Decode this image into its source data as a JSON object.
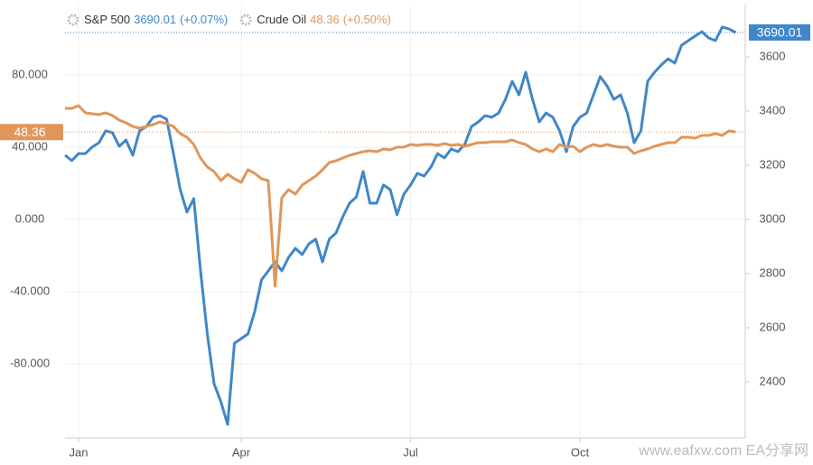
{
  "chart_data": {
    "type": "line",
    "categories": [
      null,
      null,
      "Jan",
      null,
      null,
      null,
      null,
      null,
      null,
      null,
      null,
      null,
      null,
      null,
      null,
      null,
      null,
      null,
      null,
      null,
      null,
      null,
      null,
      null,
      null,
      null,
      "Apr",
      null,
      null,
      null,
      null,
      null,
      null,
      null,
      null,
      null,
      null,
      null,
      null,
      null,
      null,
      null,
      null,
      null,
      null,
      null,
      null,
      null,
      null,
      null,
      null,
      "Jul",
      null,
      null,
      null,
      null,
      null,
      null,
      null,
      null,
      null,
      null,
      null,
      null,
      null,
      null,
      null,
      null,
      null,
      null,
      null,
      null,
      null,
      null,
      null,
      null,
      "Oct",
      null,
      null,
      null,
      null,
      null,
      null,
      null,
      null,
      null,
      null,
      null,
      null,
      null,
      null,
      null,
      null,
      null,
      null,
      null,
      null,
      null,
      null,
      null
    ],
    "series": [
      {
        "name": "S&P 500",
        "color": "#3f87c9",
        "axis": "y2",
        "change": "(+0.07%)",
        "values": [
          3237,
          3217,
          3243,
          3243,
          3267,
          3283,
          3327,
          3320,
          3270,
          3293,
          3237,
          3327,
          3343,
          3377,
          3383,
          3370,
          3243,
          3110,
          3027,
          3077,
          2810,
          2577,
          2393,
          2327,
          2243,
          2543,
          2560,
          2577,
          2660,
          2777,
          2810,
          2843,
          2810,
          2860,
          2893,
          2870,
          2910,
          2927,
          2843,
          2927,
          2950,
          3010,
          3060,
          3083,
          3177,
          3060,
          3060,
          3127,
          3110,
          3017,
          3093,
          3127,
          3170,
          3160,
          3193,
          3243,
          3227,
          3260,
          3250,
          3277,
          3343,
          3360,
          3383,
          3377,
          3393,
          3443,
          3510,
          3460,
          3543,
          3443,
          3360,
          3393,
          3377,
          3327,
          3250,
          3343,
          3377,
          3393,
          3460,
          3527,
          3493,
          3443,
          3460,
          3393,
          3283,
          3327,
          3510,
          3543,
          3570,
          3593,
          3577,
          3643,
          3660,
          3677,
          3693,
          3670,
          3660,
          3710,
          3703,
          3690.01
        ]
      },
      {
        "name": "Crude Oil",
        "color": "#e0965a",
        "axis": "y",
        "change": "(+0.50%)",
        "values": [
          61.5,
          61.5,
          63,
          59,
          58.5,
          58,
          59,
          57.5,
          55,
          53.5,
          51.5,
          50.5,
          51.5,
          52.5,
          54,
          53,
          51.5,
          47.5,
          45.5,
          41.5,
          34,
          29,
          26.5,
          21.5,
          25,
          22.5,
          20.5,
          27.5,
          25.5,
          22.5,
          21.5,
          -37,
          12,
          16.5,
          14,
          19,
          21.5,
          24,
          27.5,
          31.5,
          32.5,
          34,
          35.5,
          36.5,
          37.5,
          38,
          37.5,
          39,
          38.5,
          40,
          40,
          41.5,
          41,
          41.5,
          41.5,
          41,
          42,
          41,
          41.5,
          40.5,
          41.5,
          42.5,
          42.5,
          43,
          43,
          43,
          44,
          42.5,
          41.5,
          39,
          37.5,
          39,
          37.5,
          41.5,
          40,
          40.5,
          37.5,
          40,
          41.5,
          40.5,
          41.5,
          40.5,
          40,
          40,
          36.5,
          38,
          39,
          40.5,
          41.5,
          42.5,
          42.5,
          45.5,
          45.5,
          45,
          46.5,
          46.5,
          47.5,
          46.5,
          49,
          48.36
        ]
      }
    ],
    "ylim": [
      -121,
      119
    ],
    "yticks": [
      {
        "value": -80,
        "label": "-80.000"
      },
      {
        "value": -40,
        "label": "-40.000"
      },
      {
        "value": 0,
        "label": "0.000"
      },
      {
        "value": 40,
        "label": "40.000"
      },
      {
        "value": 80,
        "label": "80.000"
      }
    ],
    "y2lim": [
      2193.3,
      3793.3
    ],
    "y2ticks": [
      2400,
      2600,
      2800,
      3000,
      3200,
      3400,
      3600
    ],
    "grid": true,
    "watermark": "www.eafxw.com  EA分享网"
  }
}
